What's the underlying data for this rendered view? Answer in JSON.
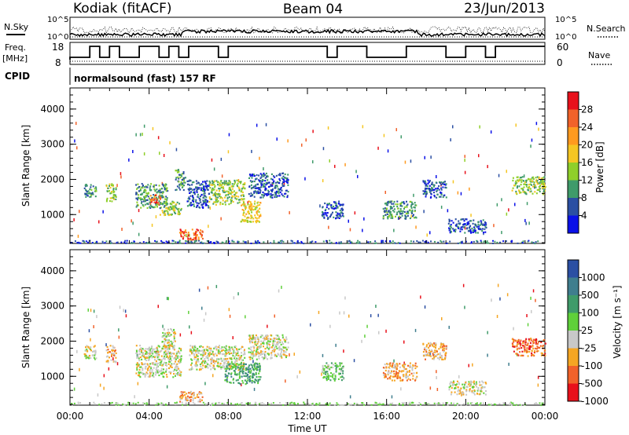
{
  "header": {
    "station": "Kodiak (fitACF)",
    "beam": "Beam 04",
    "date": "23/Jun/2013"
  },
  "strip_panels": {
    "nsky_label": "N.Sky",
    "nsearch_label": "N.Search",
    "noise_ticks": [
      "10^5",
      "10^0"
    ],
    "freq_label": "Freq.",
    "freq_unit": "[MHz]",
    "freq_ticks": [
      "18",
      "8"
    ],
    "nave_label": "Nave",
    "nave_ticks": [
      "60",
      "0"
    ],
    "cpid_label": "CPID",
    "cpid_value": "normalsound (fast) 157 RF"
  },
  "chart_data": [
    {
      "type": "heatmap",
      "name": "power",
      "ylabel": "Slant Range [km]",
      "y_ticks": [
        1000,
        2000,
        3000,
        4000
      ],
      "ylim": [
        180,
        4600
      ],
      "xlim": [
        0,
        24
      ],
      "colorbar": {
        "label": "Power [dB]",
        "ticks": [
          "28",
          "24",
          "20",
          "16",
          "12",
          "8",
          "4"
        ],
        "colors": [
          "#e8111b",
          "#f1622a",
          "#ff9a1f",
          "#f5c623",
          "#8fcf2a",
          "#3f9b6a",
          "#2b4fa3",
          "#0a10e8"
        ]
      },
      "regions": [
        {
          "t0": 0.7,
          "t1": 1.3,
          "r0": 1500,
          "r1": 1900,
          "level": 2
        },
        {
          "t0": 1.8,
          "t1": 2.3,
          "r0": 1400,
          "r1": 1900,
          "level": 3
        },
        {
          "t0": 3.3,
          "t1": 4.9,
          "r0": 1200,
          "r1": 1900,
          "level": 2
        },
        {
          "t0": 4.0,
          "t1": 4.6,
          "r0": 1300,
          "r1": 1600,
          "level": 6
        },
        {
          "t0": 4.5,
          "t1": 5.6,
          "r0": 1000,
          "r1": 1400,
          "level": 3
        },
        {
          "t0": 5.3,
          "t1": 5.8,
          "r0": 1700,
          "r1": 2300,
          "level": 2
        },
        {
          "t0": 5.9,
          "t1": 7.0,
          "r0": 1200,
          "r1": 2000,
          "level": 1
        },
        {
          "t0": 5.5,
          "t1": 6.7,
          "r0": 300,
          "r1": 600,
          "level": 6
        },
        {
          "t0": 7.0,
          "t1": 8.8,
          "r0": 1300,
          "r1": 2000,
          "level": 3
        },
        {
          "t0": 8.6,
          "t1": 9.6,
          "r0": 800,
          "r1": 1400,
          "level": 4
        },
        {
          "t0": 9.0,
          "t1": 11.0,
          "r0": 1500,
          "r1": 2200,
          "level": 1
        },
        {
          "t0": 12.7,
          "t1": 13.8,
          "r0": 900,
          "r1": 1400,
          "level": 1
        },
        {
          "t0": 15.8,
          "t1": 17.5,
          "r0": 900,
          "r1": 1400,
          "level": 2
        },
        {
          "t0": 17.8,
          "t1": 19.0,
          "r0": 1500,
          "r1": 2000,
          "level": 1
        },
        {
          "t0": 19.1,
          "t1": 21.0,
          "r0": 500,
          "r1": 900,
          "level": 1
        },
        {
          "t0": 22.3,
          "t1": 24.0,
          "r0": 1600,
          "r1": 2100,
          "level": 3
        }
      ]
    },
    {
      "type": "heatmap",
      "name": "velocity",
      "ylabel": "Slant Range [km]",
      "y_ticks": [
        1000,
        2000,
        3000,
        4000
      ],
      "ylim": [
        180,
        4600
      ],
      "xlim": [
        0,
        24
      ],
      "xlabel": "Time UT",
      "x_ticks": [
        "00:00",
        "04:00",
        "08:00",
        "12:00",
        "16:00",
        "20:00",
        "00:00"
      ],
      "colorbar": {
        "label": "Velocity [m s⁻¹]",
        "ticks": [
          "1000",
          "500",
          "100",
          "25",
          "-25",
          "-100",
          "-500",
          "-1000"
        ],
        "colors": [
          "#2b4fa3",
          "#3f7e8e",
          "#3f9b6a",
          "#5fd03a",
          "#c8c8c8",
          "#f5a623",
          "#f1622a",
          "#e8111b"
        ]
      },
      "regions": [
        {
          "t0": 0.7,
          "t1": 1.3,
          "r0": 1500,
          "r1": 1900,
          "level": 4
        },
        {
          "t0": 1.8,
          "t1": 2.3,
          "r0": 1400,
          "r1": 1900,
          "level": 5
        },
        {
          "t0": 3.3,
          "t1": 5.6,
          "r0": 1000,
          "r1": 1900,
          "level": 4
        },
        {
          "t0": 4.6,
          "t1": 5.3,
          "r0": 1800,
          "r1": 2400,
          "level": 4
        },
        {
          "t0": 5.5,
          "t1": 6.7,
          "r0": 300,
          "r1": 600,
          "level": 5
        },
        {
          "t0": 6.0,
          "t1": 8.8,
          "r0": 1200,
          "r1": 1900,
          "level": 4
        },
        {
          "t0": 7.8,
          "t1": 9.6,
          "r0": 800,
          "r1": 1400,
          "level": 2
        },
        {
          "t0": 9.0,
          "t1": 11.0,
          "r0": 1500,
          "r1": 2200,
          "level": 4
        },
        {
          "t0": 12.7,
          "t1": 13.8,
          "r0": 900,
          "r1": 1400,
          "level": 3
        },
        {
          "t0": 15.8,
          "t1": 17.5,
          "r0": 900,
          "r1": 1400,
          "level": 5
        },
        {
          "t0": 17.8,
          "t1": 19.0,
          "r0": 1500,
          "r1": 2000,
          "level": 5
        },
        {
          "t0": 19.1,
          "t1": 21.0,
          "r0": 500,
          "r1": 900,
          "level": 4
        },
        {
          "t0": 22.3,
          "t1": 24.0,
          "r0": 1600,
          "r1": 2100,
          "level": 6
        }
      ]
    }
  ]
}
